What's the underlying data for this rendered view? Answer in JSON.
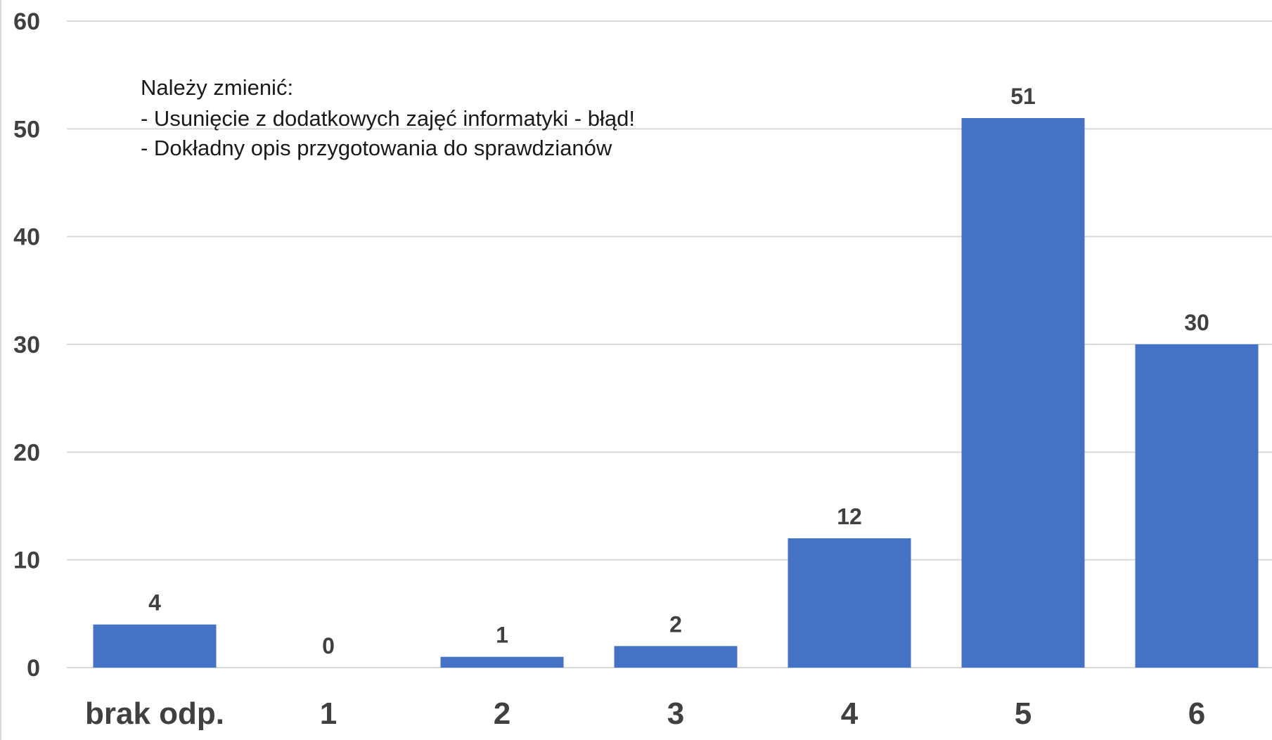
{
  "chart_data": {
    "type": "bar",
    "categories": [
      "brak odp.",
      "1",
      "2",
      "3",
      "4",
      "5",
      "6"
    ],
    "values": [
      4,
      0,
      1,
      2,
      12,
      51,
      30
    ],
    "data_labels": [
      "4",
      "0",
      "1",
      "2",
      "12",
      "51",
      "30"
    ],
    "title": "",
    "xlabel": "",
    "ylabel": "",
    "ylim": [
      0,
      60
    ],
    "yticks": [
      "0",
      "10",
      "20",
      "30",
      "40",
      "50",
      "60"
    ],
    "grid": true,
    "legend": "none",
    "bar_color": "#4472C4",
    "annotation": [
      "Należy zmienić:",
      "- Usunięcie z dodatkowych zajęć informatyki - błąd!",
      "- Dokładny opis przygotowania do sprawdzianów"
    ]
  },
  "colors": {
    "bar": "#4472C4",
    "grid": "#d9d9d9",
    "text": "#404040"
  }
}
